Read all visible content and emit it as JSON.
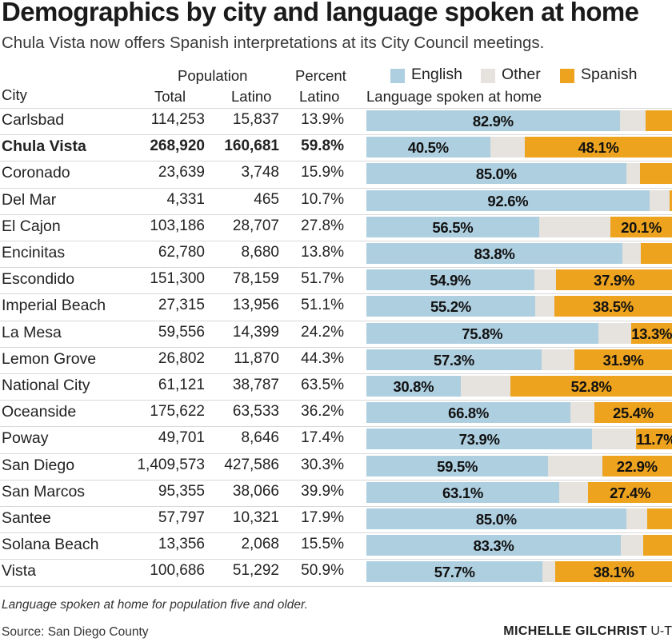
{
  "title": "Demographics by city and language spoken at home",
  "subtitle": "Chula Vista now offers Spanish interpretations at its City Council meetings.",
  "headers": {
    "city": "City",
    "population": "Population",
    "total": "Total",
    "latino": "Latino",
    "percent": "Percent",
    "percent_latino": "Latino",
    "language": "Language spoken at home"
  },
  "legend": [
    {
      "name": "English",
      "color": "#aecfe0"
    },
    {
      "name": "Other",
      "color": "#e6e2dd"
    },
    {
      "name": "Spanish",
      "color": "#eda31e"
    }
  ],
  "colors": {
    "english": "#aecfe0",
    "other": "#e6e2dd",
    "spanish": "#eda31e"
  },
  "chart_data": {
    "type": "table",
    "columns": [
      "City",
      "Total",
      "Latino",
      "Percent Latino",
      "English",
      "Other",
      "Spanish"
    ],
    "rows": [
      {
        "city": "Carlsbad",
        "total": "114,253",
        "latino": "15,837",
        "pct": "13.9%",
        "english": 82.9,
        "other": 8.5,
        "spanish": 8.6,
        "english_label": "82.9%",
        "spanish_label": "",
        "highlight": false
      },
      {
        "city": "Chula Vista",
        "total": "268,920",
        "latino": "160,681",
        "pct": "59.8%",
        "english": 40.5,
        "other": 11.4,
        "spanish": 48.1,
        "english_label": "40.5%",
        "spanish_label": "48.1%",
        "highlight": true
      },
      {
        "city": "Coronado",
        "total": "23,639",
        "latino": "3,748",
        "pct": "15.9%",
        "english": 85.0,
        "other": 4.5,
        "spanish": 10.5,
        "english_label": "85.0%",
        "spanish_label": "",
        "highlight": false
      },
      {
        "city": "Del Mar",
        "total": "4,331",
        "latino": "465",
        "pct": "10.7%",
        "english": 92.6,
        "other": 6.5,
        "spanish": 0.9,
        "english_label": "92.6%",
        "spanish_label": "",
        "highlight": false
      },
      {
        "city": "El Cajon",
        "total": "103,186",
        "latino": "28,707",
        "pct": "27.8%",
        "english": 56.5,
        "other": 23.4,
        "spanish": 20.1,
        "english_label": "56.5%",
        "spanish_label": "20.1%",
        "highlight": false
      },
      {
        "city": "Encinitas",
        "total": "62,780",
        "latino": "8,680",
        "pct": "13.8%",
        "english": 83.8,
        "other": 6.0,
        "spanish": 10.2,
        "english_label": "83.8%",
        "spanish_label": "",
        "highlight": false
      },
      {
        "city": "Escondido",
        "total": "151,300",
        "latino": "78,159",
        "pct": "51.7%",
        "english": 54.9,
        "other": 7.2,
        "spanish": 37.9,
        "english_label": "54.9%",
        "spanish_label": "37.9%",
        "highlight": false
      },
      {
        "city": "Imperial Beach",
        "total": "27,315",
        "latino": "13,956",
        "pct": "51.1%",
        "english": 55.2,
        "other": 6.3,
        "spanish": 38.5,
        "english_label": "55.2%",
        "spanish_label": "38.5%",
        "highlight": false
      },
      {
        "city": "La Mesa",
        "total": "59,556",
        "latino": "14,399",
        "pct": "24.2%",
        "english": 75.8,
        "other": 10.9,
        "spanish": 13.3,
        "english_label": "75.8%",
        "spanish_label": "13.3%",
        "highlight": false
      },
      {
        "city": "Lemon Grove",
        "total": "26,802",
        "latino": "11,870",
        "pct": "44.3%",
        "english": 57.3,
        "other": 10.8,
        "spanish": 31.9,
        "english_label": "57.3%",
        "spanish_label": "31.9%",
        "highlight": false
      },
      {
        "city": "National City",
        "total": "61,121",
        "latino": "38,787",
        "pct": "63.5%",
        "english": 30.8,
        "other": 16.4,
        "spanish": 52.8,
        "english_label": "30.8%",
        "spanish_label": "52.8%",
        "highlight": false
      },
      {
        "city": "Oceanside",
        "total": "175,622",
        "latino": "63,533",
        "pct": "36.2%",
        "english": 66.8,
        "other": 7.8,
        "spanish": 25.4,
        "english_label": "66.8%",
        "spanish_label": "25.4%",
        "highlight": false
      },
      {
        "city": "Poway",
        "total": "49,701",
        "latino": "8,646",
        "pct": "17.4%",
        "english": 73.9,
        "other": 14.4,
        "spanish": 11.7,
        "english_label": "73.9%",
        "spanish_label": "11.7%",
        "highlight": false
      },
      {
        "city": "San Diego",
        "total": "1,409,573",
        "latino": "427,586",
        "pct": "30.3%",
        "english": 59.5,
        "other": 17.6,
        "spanish": 22.9,
        "english_label": "59.5%",
        "spanish_label": "22.9%",
        "highlight": false
      },
      {
        "city": "San Marcos",
        "total": "95,355",
        "latino": "38,066",
        "pct": "39.9%",
        "english": 63.1,
        "other": 9.5,
        "spanish": 27.4,
        "english_label": "63.1%",
        "spanish_label": "27.4%",
        "highlight": false
      },
      {
        "city": "Santee",
        "total": "57,797",
        "latino": "10,321",
        "pct": "17.9%",
        "english": 85.0,
        "other": 7.0,
        "spanish": 8.0,
        "english_label": "85.0%",
        "spanish_label": "",
        "highlight": false
      },
      {
        "city": "Solana Beach",
        "total": "13,356",
        "latino": "2,068",
        "pct": "15.5%",
        "english": 83.3,
        "other": 7.2,
        "spanish": 9.5,
        "english_label": "83.3%",
        "spanish_label": "",
        "highlight": false
      },
      {
        "city": "Vista",
        "total": "100,686",
        "latino": "51,292",
        "pct": "50.9%",
        "english": 57.7,
        "other": 4.2,
        "spanish": 38.1,
        "english_label": "57.7%",
        "spanish_label": "38.1%",
        "highlight": false
      }
    ]
  },
  "note": "Language spoken at home for population five and older.",
  "source": "Source: San Diego County",
  "credit_name": "MICHELLE GILCHRIST",
  "credit_org": "U-T"
}
